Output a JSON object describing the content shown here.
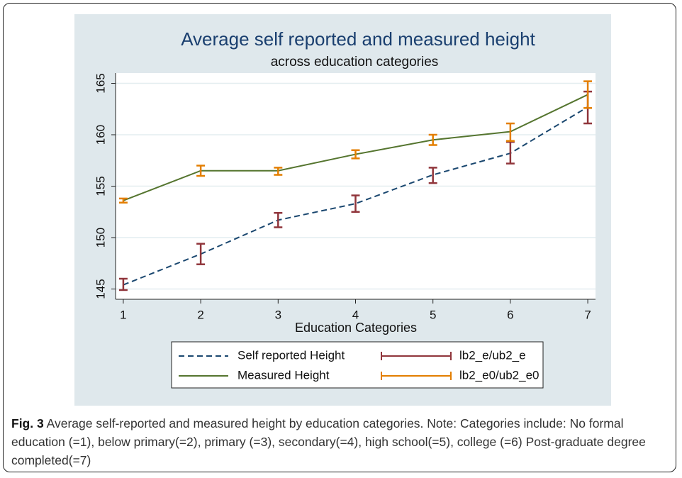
{
  "chart_data": {
    "type": "line",
    "title": "Average self reported and measured height",
    "subtitle": "across education categories",
    "x_label": "Education Categories",
    "x": [
      1,
      2,
      3,
      4,
      5,
      6,
      7
    ],
    "xlim": [
      0.9,
      7.1
    ],
    "xticks": [
      1,
      2,
      3,
      4,
      5,
      6,
      7
    ],
    "ylim": [
      144,
      166
    ],
    "yticks": [
      145,
      150,
      155,
      160,
      165
    ],
    "grid": true,
    "series": [
      {
        "name": "Self reported Height",
        "color": "#1a476f",
        "dash": true,
        "values": [
          145.4,
          148.4,
          151.7,
          153.3,
          156.1,
          158.2,
          162.7
        ]
      },
      {
        "name": "Measured Height",
        "color": "#55752f",
        "dash": false,
        "values": [
          153.6,
          156.5,
          156.5,
          158.1,
          159.5,
          160.3,
          163.9
        ]
      },
      {
        "name": "lb2_e/ub2_e",
        "color": "#90353b",
        "type": "errorbar",
        "lower": [
          144.9,
          147.4,
          151.0,
          152.5,
          155.3,
          157.2,
          161.1
        ],
        "upper": [
          146.0,
          149.4,
          152.4,
          154.1,
          156.8,
          159.3,
          164.2
        ]
      },
      {
        "name": "lb2_e0/ub2_e0",
        "color": "#e37e00",
        "type": "errorbar",
        "lower": [
          153.4,
          156.0,
          156.1,
          157.7,
          159.0,
          159.4,
          162.6
        ],
        "upper": [
          153.8,
          157.0,
          156.8,
          158.5,
          160.0,
          161.1,
          165.2
        ]
      }
    ]
  },
  "caption": {
    "label": "Fig. 3",
    "text": " Average self-reported and measured height by education categories. Note: Categories include: No formal education (=1), below primary(=2), primary (=3), secondary(=4), high school(=5), college (=6) Post-graduate degree completed(=7)"
  }
}
